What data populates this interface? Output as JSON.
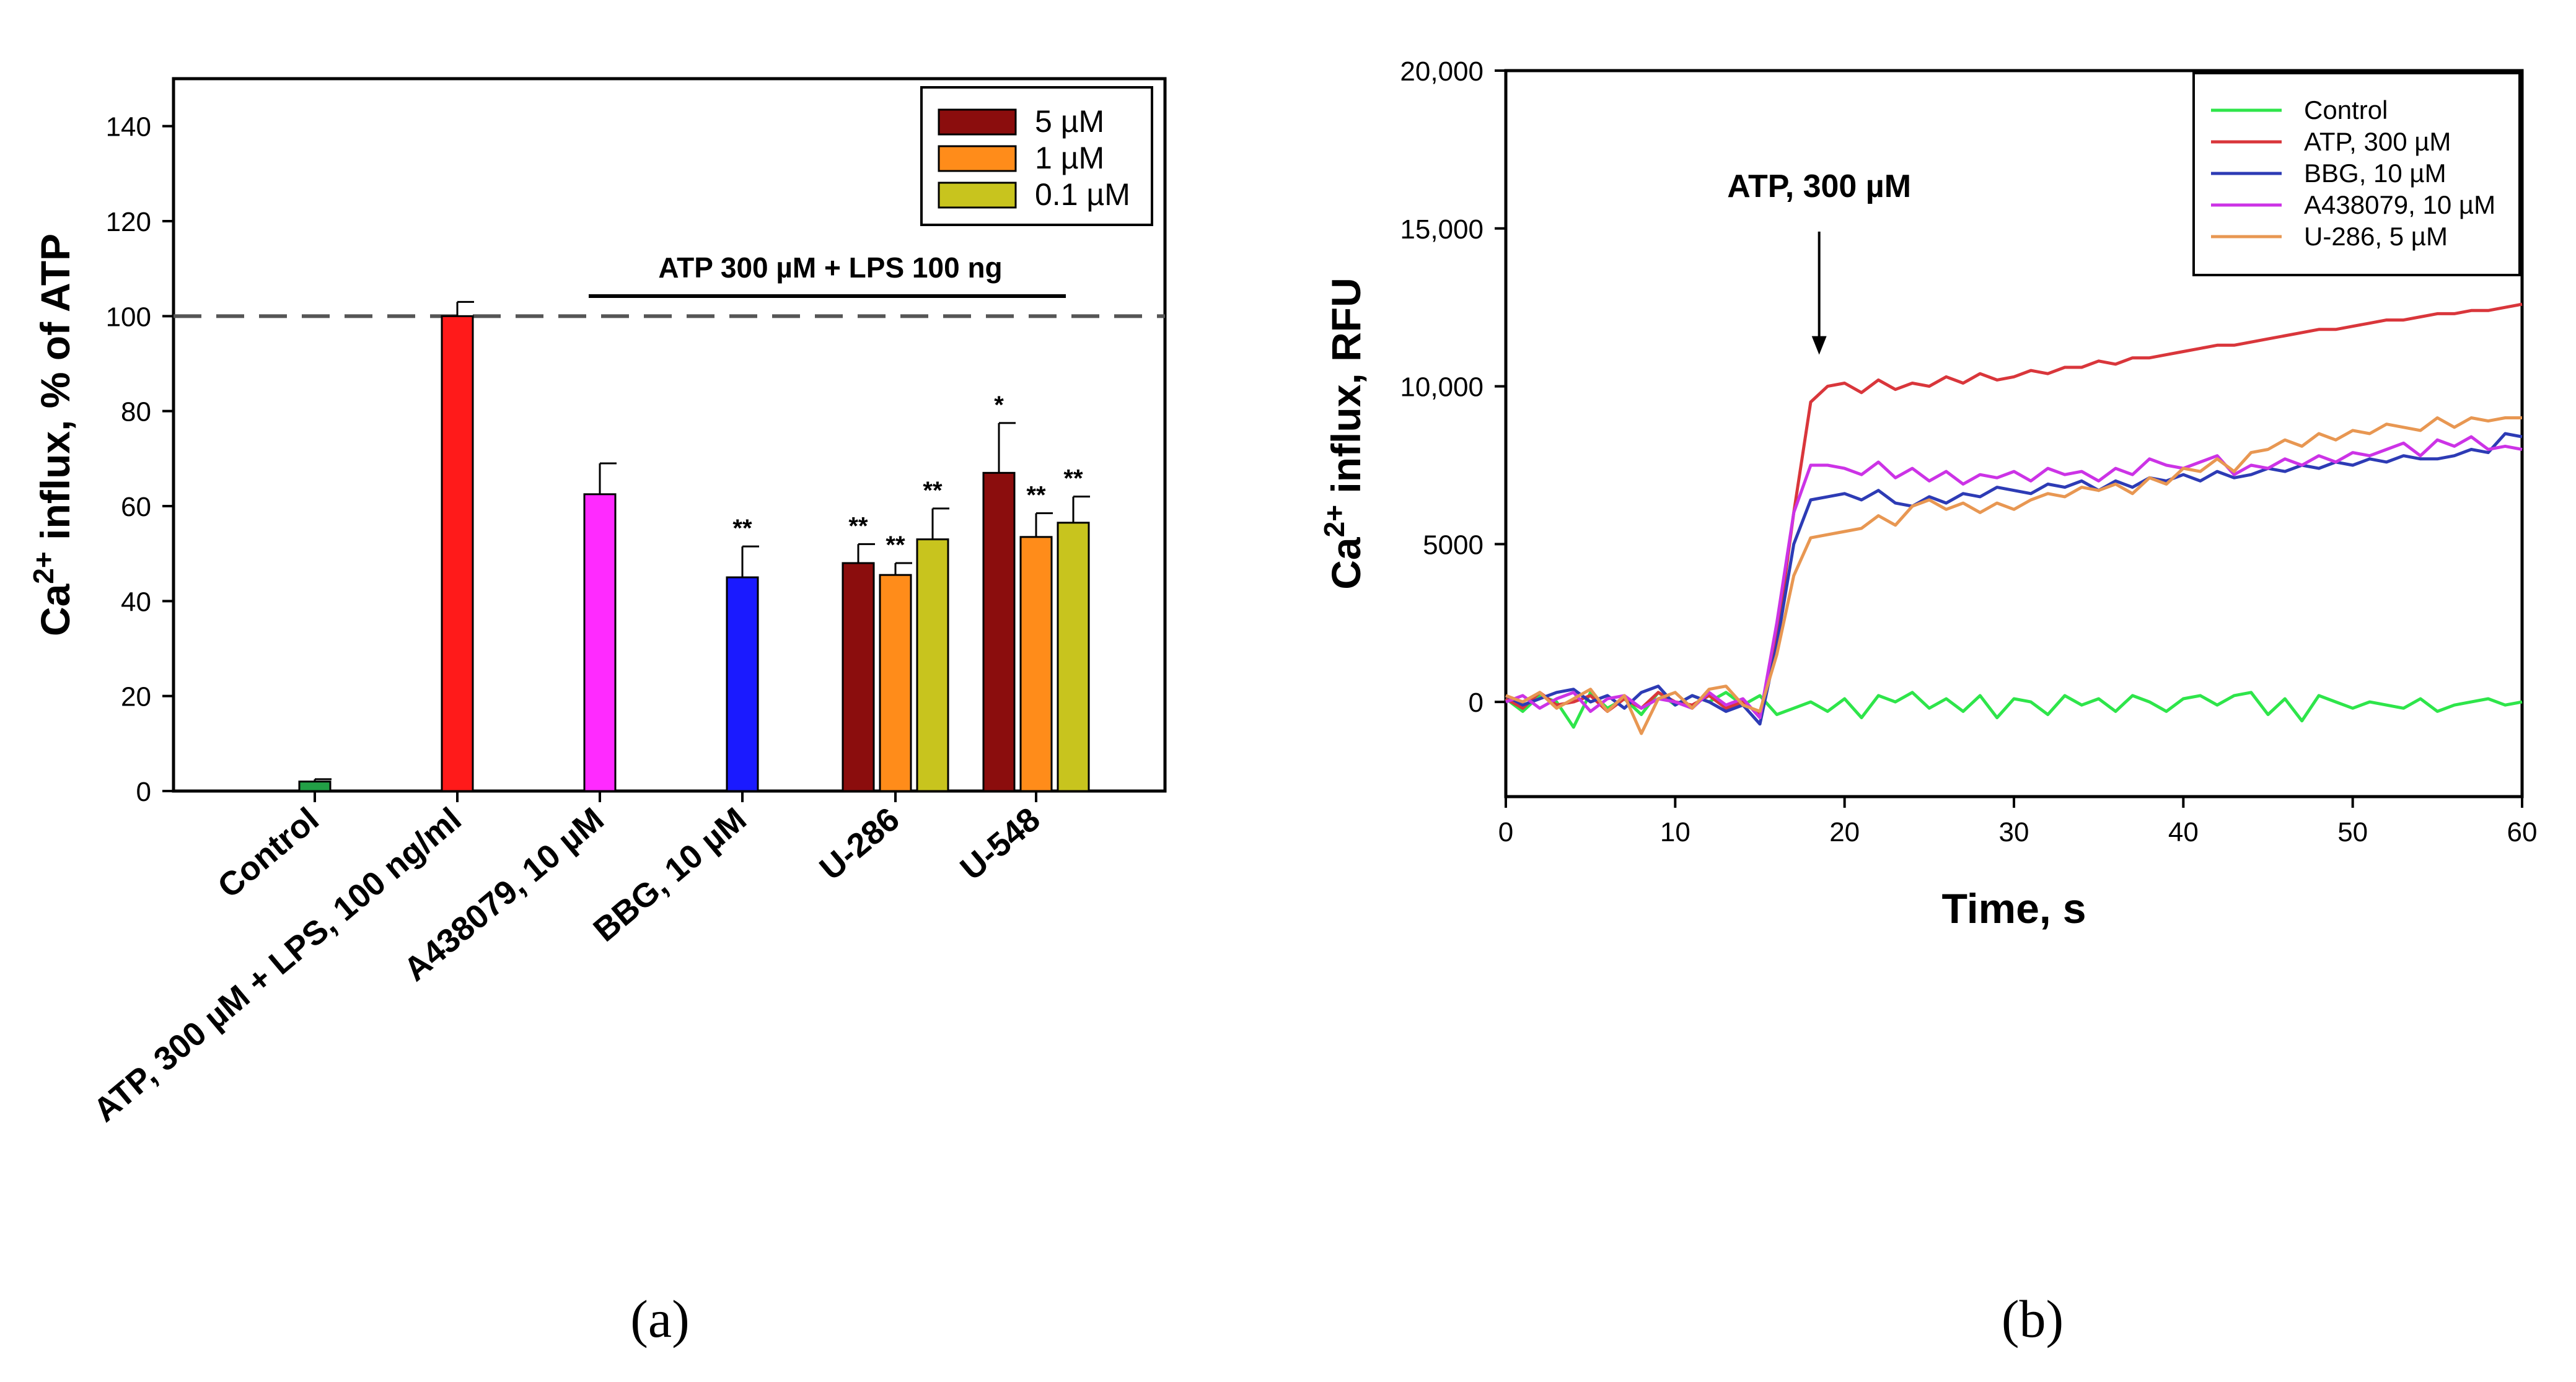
{
  "chart_data": [
    {
      "panel_label": "(a)",
      "type": "bar",
      "ylabel": "Ca2+ influx, % of ATP",
      "ylabel_parts": {
        "base": "Ca",
        "sup": "2+",
        "rest": " influx, % of ATP"
      },
      "ylim": [
        0,
        150
      ],
      "yticks": [
        0,
        20,
        40,
        60,
        80,
        100,
        120,
        140
      ],
      "reference_line": {
        "value": 100,
        "style": "dashed"
      },
      "bracket_label": "ATP 300 µM + LPS 100 ng",
      "legend": [
        {
          "label": "5 µM",
          "color": "#8b0d0d"
        },
        {
          "label": "1 µM",
          "color": "#ff8c1a"
        },
        {
          "label": "0.1 µM",
          "color": "#c8c41e"
        }
      ],
      "categories": [
        "Control",
        "ATP, 300 µM + LPS, 100 ng/ml",
        "A438079, 10 µM",
        "BBG, 10 µM",
        "U-286",
        "U-548"
      ],
      "bars": [
        {
          "category": "Control",
          "value": 2,
          "error": 0.5,
          "color": "#22a046",
          "mark": ""
        },
        {
          "category": "ATP, 300 µM + LPS, 100 ng/ml",
          "value": 100,
          "error": 3,
          "color": "#ff1a1a",
          "mark": ""
        },
        {
          "category": "A438079, 10 µM",
          "value": 62.5,
          "error": 6.5,
          "color": "#ff2aff",
          "mark": ""
        },
        {
          "category": "BBG, 10 µM",
          "value": 45,
          "error": 6.5,
          "color": "#1a1aff",
          "mark": "**"
        },
        {
          "category": "U-286",
          "series": "5 µM",
          "value": 48,
          "error": 4,
          "color": "#8b0d0d",
          "mark": "**"
        },
        {
          "category": "U-286",
          "series": "1 µM",
          "value": 45.5,
          "error": 2.5,
          "color": "#ff8c1a",
          "mark": "**"
        },
        {
          "category": "U-286",
          "series": "0.1 µM",
          "value": 53,
          "error": 6.5,
          "color": "#c8c41e",
          "mark": "**"
        },
        {
          "category": "U-548",
          "series": "5 µM",
          "value": 67,
          "error": 10.5,
          "color": "#8b0d0d",
          "mark": "*"
        },
        {
          "category": "U-548",
          "series": "1 µM",
          "value": 53.5,
          "error": 5,
          "color": "#ff8c1a",
          "mark": "**"
        },
        {
          "category": "U-548",
          "series": "0.1 µM",
          "value": 56.5,
          "error": 5.5,
          "color": "#c8c41e",
          "mark": "**"
        }
      ]
    },
    {
      "panel_label": "(b)",
      "type": "line",
      "xlabel": "Time, s",
      "ylabel": "Ca2+ influx, RFU",
      "ylabel_parts": {
        "base": "Ca",
        "sup": "2+",
        "rest": " influx, RFU"
      },
      "xlim": [
        0,
        60
      ],
      "ylim": [
        -3000,
        20000
      ],
      "xticks": [
        0,
        10,
        20,
        30,
        40,
        50,
        60
      ],
      "yticks": [
        {
          "value": 0,
          "label": "0"
        },
        {
          "value": 5000,
          "label": "5000"
        },
        {
          "value": 10000,
          "label": "10,000"
        },
        {
          "value": 15000,
          "label": "15,000"
        },
        {
          "value": 20000,
          "label": "20,000"
        }
      ],
      "annotation": {
        "text": "ATP, 300 µM",
        "x": 18.5,
        "y_text": 16000,
        "y_arrow_start": 14900,
        "y_arrow_end": 11000
      },
      "x": [
        0,
        1,
        2,
        3,
        4,
        5,
        6,
        7,
        8,
        9,
        10,
        11,
        12,
        13,
        14,
        15,
        16,
        17,
        18,
        19,
        20,
        21,
        22,
        23,
        24,
        25,
        26,
        27,
        28,
        29,
        30,
        31,
        32,
        33,
        34,
        35,
        36,
        37,
        38,
        39,
        40,
        41,
        42,
        43,
        44,
        45,
        46,
        47,
        48,
        49,
        50,
        51,
        52,
        53,
        54,
        55,
        56,
        57,
        58,
        59,
        60
      ],
      "series": [
        {
          "name": "Control",
          "color": "#2ee54a",
          "values": [
            100,
            -300,
            200,
            0,
            -800,
            300,
            -200,
            100,
            -400,
            300,
            -100,
            200,
            0,
            300,
            -100,
            200,
            -400,
            -200,
            0,
            -300,
            100,
            -500,
            200,
            0,
            300,
            -200,
            100,
            -300,
            200,
            -500,
            100,
            0,
            -400,
            200,
            -100,
            100,
            -300,
            200,
            0,
            -300,
            100,
            200,
            -100,
            200,
            300,
            -400,
            100,
            -600,
            200,
            0,
            -200,
            0,
            -100,
            -200,
            100,
            -300,
            -100,
            0,
            100,
            -100,
            0
          ]
        },
        {
          "name": "ATP, 300 µM",
          "color": "#d9363b",
          "values": [
            100,
            -200,
            300,
            -100,
            0,
            200,
            -300,
            100,
            -200,
            300,
            0,
            -100,
            200,
            -200,
            0,
            -400,
            2000,
            6000,
            9500,
            10000,
            10100,
            9800,
            10200,
            9900,
            10100,
            10000,
            10300,
            10100,
            10400,
            10200,
            10300,
            10500,
            10400,
            10600,
            10600,
            10800,
            10700,
            10900,
            10900,
            11000,
            11100,
            11200,
            11300,
            11300,
            11400,
            11500,
            11600,
            11700,
            11800,
            11800,
            11900,
            12000,
            12100,
            12100,
            12200,
            12300,
            12300,
            12400,
            12400,
            12500,
            12600
          ]
        },
        {
          "name": "BBG, 10 µM",
          "color": "#2d3bb5",
          "values": [
            200,
            -100,
            100,
            300,
            400,
            0,
            200,
            -200,
            300,
            500,
            -100,
            200,
            0,
            -300,
            -100,
            -700,
            1800,
            5000,
            6400,
            6500,
            6600,
            6400,
            6700,
            6300,
            6200,
            6500,
            6300,
            6600,
            6500,
            6800,
            6700,
            6600,
            6900,
            6800,
            7000,
            6700,
            7000,
            6800,
            7100,
            7000,
            7200,
            7000,
            7300,
            7100,
            7200,
            7400,
            7300,
            7500,
            7400,
            7600,
            7500,
            7700,
            7600,
            7800,
            7700,
            7700,
            7800,
            8000,
            7900,
            8500,
            8400
          ]
        },
        {
          "name": "A438079, 10 µM",
          "color": "#cc33e6",
          "values": [
            0,
            200,
            -200,
            100,
            300,
            -300,
            100,
            200,
            -200,
            100,
            0,
            -200,
            300,
            -100,
            100,
            -500,
            2500,
            6000,
            7500,
            7500,
            7400,
            7200,
            7600,
            7100,
            7400,
            7000,
            7300,
            6900,
            7200,
            7100,
            7300,
            7000,
            7400,
            7200,
            7300,
            7000,
            7400,
            7200,
            7700,
            7500,
            7400,
            7600,
            7800,
            7200,
            7500,
            7400,
            7700,
            7500,
            7800,
            7600,
            7900,
            7800,
            8000,
            8200,
            7800,
            8300,
            8100,
            8400,
            8000,
            8100,
            8000
          ]
        },
        {
          "name": "U-286, 5 µM",
          "color": "#e89752",
          "values": [
            200,
            0,
            300,
            -200,
            100,
            400,
            -300,
            200,
            -1000,
            100,
            300,
            -200,
            400,
            500,
            -100,
            -300,
            1500,
            4000,
            5200,
            5300,
            5400,
            5500,
            5900,
            5600,
            6200,
            6400,
            6100,
            6300,
            6000,
            6300,
            6100,
            6400,
            6600,
            6500,
            6800,
            6700,
            6900,
            6600,
            7100,
            6900,
            7400,
            7300,
            7700,
            7300,
            7900,
            8000,
            8300,
            8100,
            8500,
            8300,
            8600,
            8500,
            8800,
            8700,
            8600,
            9000,
            8700,
            9000,
            8900,
            9000,
            9000
          ]
        }
      ]
    }
  ]
}
